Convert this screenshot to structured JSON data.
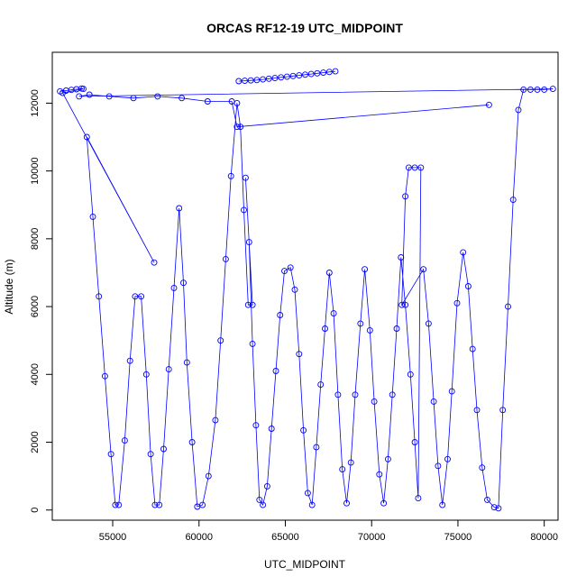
{
  "chart_data": {
    "type": "line",
    "title": "ORCAS RF12-19 UTC_MIDPOINT",
    "xlabel": "UTC_MIDPOINT",
    "ylabel": "Altitude (m)",
    "xlim": [
      51500,
      80800
    ],
    "ylim": [
      -300,
      13500
    ],
    "x_ticks": [
      "55000",
      "60000",
      "65000",
      "70000",
      "75000",
      "80000"
    ],
    "x_tick_values": [
      55000,
      60000,
      65000,
      70000,
      75000,
      80000
    ],
    "y_ticks": [
      "0",
      "2000",
      "4000",
      "6000",
      "8000",
      "10000",
      "12000"
    ],
    "y_tick_values": [
      0,
      2000,
      4000,
      6000,
      8000,
      10000,
      12000
    ],
    "grid": false,
    "color": "#0000ff",
    "series": [
      {
        "marker": "open-circle",
        "points": [
          [
            51950,
            12350
          ],
          [
            52300,
            12370
          ],
          [
            52600,
            12390
          ],
          [
            52900,
            12410
          ],
          [
            53200,
            12430
          ],
          [
            53300,
            12420
          ],
          [
            52100,
            12300
          ],
          [
            57400,
            7300
          ],
          [
            53500,
            11000
          ],
          [
            53850,
            8650
          ],
          [
            54200,
            6300
          ],
          [
            54550,
            3950
          ],
          [
            54900,
            1650
          ],
          [
            55150,
            150
          ],
          [
            55350,
            150
          ],
          [
            55700,
            2050
          ],
          [
            56000,
            4400
          ],
          [
            56300,
            6300
          ],
          [
            56650,
            6300
          ],
          [
            56950,
            4000
          ],
          [
            57200,
            1650
          ],
          [
            57450,
            150
          ],
          [
            57700,
            150
          ],
          [
            57950,
            1800
          ],
          [
            58250,
            4150
          ],
          [
            58550,
            6550
          ],
          [
            58850,
            8900
          ],
          [
            59100,
            6700
          ],
          [
            59300,
            4350
          ],
          [
            59600,
            2000
          ],
          [
            59900,
            100
          ],
          [
            60200,
            150
          ],
          [
            60550,
            1000
          ],
          [
            60950,
            2650
          ],
          [
            61250,
            5000
          ],
          [
            61550,
            7400
          ],
          [
            61850,
            9850
          ],
          [
            62200,
            12000
          ],
          [
            62400,
            11300
          ],
          [
            62600,
            8850
          ],
          [
            62850,
            6050
          ],
          [
            63100,
            6050
          ],
          [
            62700,
            9800
          ],
          [
            62900,
            7900
          ],
          [
            63100,
            4900
          ],
          [
            63300,
            2500
          ],
          [
            63500,
            300
          ],
          [
            63700,
            150
          ],
          [
            63950,
            700
          ],
          [
            64200,
            2400
          ],
          [
            64450,
            4100
          ],
          [
            64700,
            5750
          ],
          [
            64950,
            7050
          ],
          [
            65300,
            7150
          ],
          [
            65550,
            6500
          ],
          [
            65800,
            4600
          ],
          [
            66050,
            2350
          ],
          [
            66300,
            500
          ],
          [
            66550,
            150
          ],
          [
            66800,
            1850
          ],
          [
            67050,
            3700
          ],
          [
            67300,
            5350
          ],
          [
            67550,
            7000
          ],
          [
            67800,
            5800
          ],
          [
            68050,
            3400
          ],
          [
            68300,
            1200
          ],
          [
            68550,
            200
          ],
          [
            68800,
            1400
          ],
          [
            69050,
            3400
          ],
          [
            69350,
            5500
          ],
          [
            69600,
            7100
          ],
          [
            69900,
            5300
          ],
          [
            70150,
            3200
          ],
          [
            70450,
            1050
          ],
          [
            70700,
            200
          ],
          [
            70950,
            1500
          ],
          [
            71200,
            3400
          ],
          [
            71450,
            5350
          ],
          [
            71700,
            7450
          ],
          [
            71950,
            6050
          ],
          [
            72250,
            4000
          ],
          [
            72500,
            2000
          ],
          [
            72700,
            350
          ],
          [
            72850,
            10100
          ],
          [
            72500,
            10100
          ],
          [
            72150,
            10100
          ],
          [
            71950,
            9250
          ],
          [
            71750,
            6050
          ],
          [
            73000,
            7100
          ],
          [
            73300,
            5500
          ],
          [
            73600,
            3200
          ],
          [
            73850,
            1300
          ],
          [
            74100,
            150
          ],
          [
            74400,
            1500
          ],
          [
            74650,
            3500
          ],
          [
            74950,
            6100
          ],
          [
            75300,
            7600
          ],
          [
            75600,
            6600
          ],
          [
            75850,
            4750
          ],
          [
            76100,
            2950
          ],
          [
            76400,
            1250
          ],
          [
            76700,
            300
          ],
          [
            77100,
            80
          ],
          [
            77350,
            50
          ],
          [
            77600,
            2950
          ],
          [
            77900,
            6000
          ],
          [
            78200,
            9150
          ],
          [
            78500,
            11800
          ],
          [
            78800,
            12400
          ],
          [
            79200,
            12400
          ],
          [
            79600,
            12400
          ],
          [
            80000,
            12400
          ],
          [
            80500,
            12420
          ],
          [
            53050,
            12200
          ],
          [
            53650,
            12250
          ],
          [
            54800,
            12200
          ],
          [
            56200,
            12150
          ],
          [
            57600,
            12200
          ],
          [
            59000,
            12150
          ],
          [
            60500,
            12050
          ],
          [
            61900,
            12050
          ],
          [
            62200,
            11300
          ],
          [
            76800,
            11950
          ]
        ]
      },
      {
        "marker": "open-circle",
        "points": [
          [
            62300,
            12650
          ],
          [
            62650,
            12660
          ],
          [
            63000,
            12670
          ],
          [
            63350,
            12680
          ],
          [
            63700,
            12700
          ],
          [
            64050,
            12720
          ],
          [
            64400,
            12740
          ],
          [
            64750,
            12760
          ],
          [
            65100,
            12780
          ],
          [
            65450,
            12800
          ],
          [
            65800,
            12820
          ],
          [
            66150,
            12840
          ],
          [
            66500,
            12860
          ],
          [
            66850,
            12880
          ],
          [
            67200,
            12900
          ],
          [
            67550,
            12920
          ],
          [
            67900,
            12940
          ]
        ]
      }
    ]
  }
}
